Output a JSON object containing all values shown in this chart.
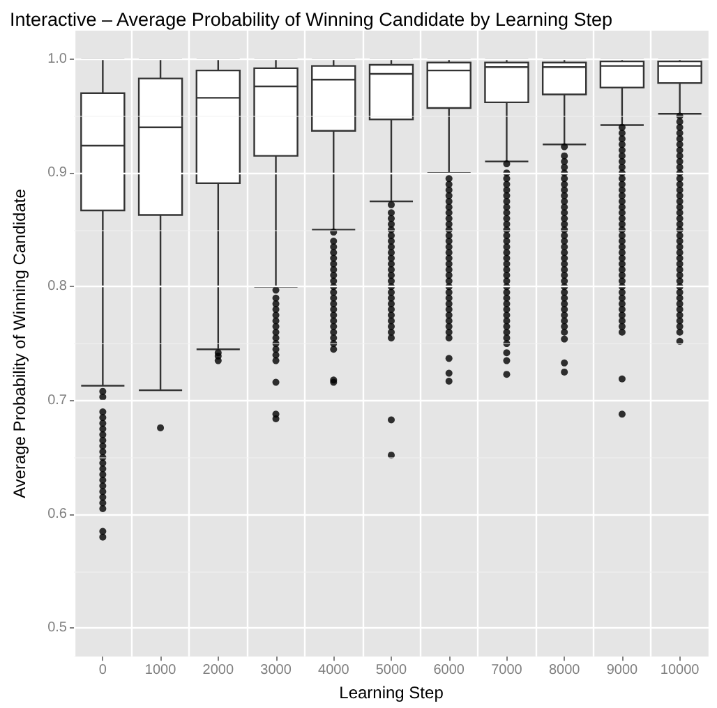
{
  "chart_data": {
    "type": "box",
    "title": "Interactive – Average Probability of Winning Candidate by Learning Step",
    "xlabel": "Learning Step",
    "ylabel": "Average Probability of Winning Candidate",
    "categories": [
      "0",
      "1000",
      "2000",
      "3000",
      "4000",
      "5000",
      "6000",
      "7000",
      "8000",
      "9000",
      "10000"
    ],
    "ylim": [
      0.475,
      1.025
    ],
    "yticks": [
      0.5,
      0.6,
      0.7,
      0.8,
      0.9,
      {
        "value": 1.0,
        "label": "1.0"
      }
    ],
    "grid": true,
    "boxes": [
      {
        "low": 0.713,
        "q1": 0.867,
        "median": 0.924,
        "q3": 0.97,
        "high": 1.0,
        "outliers": [
          0.708,
          0.703,
          0.69,
          0.685,
          0.68,
          0.675,
          0.67,
          0.665,
          0.66,
          0.655,
          0.65,
          0.645,
          0.64,
          0.635,
          0.63,
          0.625,
          0.62,
          0.615,
          0.61,
          0.605,
          0.585,
          0.58
        ]
      },
      {
        "low": 0.709,
        "q1": 0.863,
        "median": 0.94,
        "q3": 0.983,
        "high": 1.0,
        "outliers": [
          0.676
        ]
      },
      {
        "low": 0.745,
        "q1": 0.891,
        "median": 0.966,
        "q3": 0.99,
        "high": 1.0,
        "outliers": [
          0.742,
          0.739,
          0.735
        ]
      },
      {
        "low": 0.8,
        "q1": 0.915,
        "median": 0.976,
        "q3": 0.992,
        "high": 1.0,
        "outliers": [
          0.797,
          0.79,
          0.785,
          0.78,
          0.775,
          0.77,
          0.765,
          0.76,
          0.755,
          0.75,
          0.745,
          0.74,
          0.735,
          0.716,
          0.688,
          0.684
        ]
      },
      {
        "low": 0.85,
        "q1": 0.937,
        "median": 0.982,
        "q3": 0.994,
        "high": 1.0,
        "outliers": [
          0.848,
          0.84,
          0.835,
          0.83,
          0.825,
          0.82,
          0.815,
          0.81,
          0.805,
          0.8,
          0.795,
          0.79,
          0.785,
          0.78,
          0.775,
          0.77,
          0.765,
          0.76,
          0.755,
          0.75,
          0.745,
          0.718,
          0.716
        ]
      },
      {
        "low": 0.875,
        "q1": 0.947,
        "median": 0.987,
        "q3": 0.995,
        "high": 1.0,
        "outliers": [
          0.872,
          0.865,
          0.86,
          0.855,
          0.85,
          0.845,
          0.84,
          0.835,
          0.83,
          0.825,
          0.82,
          0.815,
          0.81,
          0.805,
          0.8,
          0.795,
          0.79,
          0.785,
          0.78,
          0.775,
          0.77,
          0.765,
          0.76,
          0.755,
          0.683,
          0.652
        ]
      },
      {
        "low": 0.9,
        "q1": 0.957,
        "median": 0.99,
        "q3": 0.997,
        "high": 1.0,
        "outliers": [
          0.895,
          0.89,
          0.885,
          0.88,
          0.875,
          0.87,
          0.865,
          0.86,
          0.855,
          0.85,
          0.845,
          0.84,
          0.835,
          0.83,
          0.825,
          0.82,
          0.815,
          0.81,
          0.805,
          0.8,
          0.795,
          0.79,
          0.785,
          0.78,
          0.775,
          0.77,
          0.765,
          0.76,
          0.755,
          0.737,
          0.724,
          0.717
        ]
      },
      {
        "low": 0.91,
        "q1": 0.962,
        "median": 0.993,
        "q3": 0.997,
        "high": 1.0,
        "outliers": [
          0.908,
          0.9,
          0.895,
          0.89,
          0.885,
          0.88,
          0.875,
          0.87,
          0.865,
          0.86,
          0.855,
          0.85,
          0.845,
          0.84,
          0.835,
          0.83,
          0.825,
          0.82,
          0.815,
          0.81,
          0.805,
          0.8,
          0.795,
          0.79,
          0.785,
          0.78,
          0.775,
          0.77,
          0.765,
          0.76,
          0.755,
          0.75,
          0.742,
          0.735,
          0.723
        ]
      },
      {
        "low": 0.925,
        "q1": 0.969,
        "median": 0.993,
        "q3": 0.997,
        "high": 1.0,
        "outliers": [
          0.923,
          0.915,
          0.91,
          0.905,
          0.9,
          0.895,
          0.89,
          0.885,
          0.88,
          0.875,
          0.87,
          0.865,
          0.86,
          0.855,
          0.85,
          0.845,
          0.84,
          0.835,
          0.83,
          0.825,
          0.82,
          0.815,
          0.81,
          0.805,
          0.8,
          0.795,
          0.79,
          0.785,
          0.78,
          0.775,
          0.77,
          0.765,
          0.76,
          0.754,
          0.733,
          0.725
        ]
      },
      {
        "low": 0.942,
        "q1": 0.975,
        "median": 0.994,
        "q3": 0.998,
        "high": 1.0,
        "outliers": [
          0.94,
          0.935,
          0.93,
          0.925,
          0.92,
          0.915,
          0.91,
          0.905,
          0.9,
          0.895,
          0.89,
          0.885,
          0.88,
          0.875,
          0.87,
          0.865,
          0.86,
          0.855,
          0.85,
          0.845,
          0.84,
          0.835,
          0.83,
          0.825,
          0.82,
          0.815,
          0.81,
          0.805,
          0.8,
          0.795,
          0.79,
          0.785,
          0.78,
          0.775,
          0.77,
          0.765,
          0.76,
          0.719,
          0.688
        ]
      },
      {
        "low": 0.952,
        "q1": 0.979,
        "median": 0.994,
        "q3": 0.998,
        "high": 1.0,
        "outliers": [
          0.95,
          0.945,
          0.94,
          0.935,
          0.93,
          0.925,
          0.92,
          0.915,
          0.91,
          0.905,
          0.9,
          0.895,
          0.89,
          0.885,
          0.88,
          0.875,
          0.87,
          0.865,
          0.86,
          0.855,
          0.85,
          0.845,
          0.84,
          0.835,
          0.83,
          0.825,
          0.82,
          0.815,
          0.81,
          0.805,
          0.8,
          0.795,
          0.79,
          0.785,
          0.78,
          0.775,
          0.77,
          0.765,
          0.76,
          0.752
        ]
      }
    ]
  }
}
